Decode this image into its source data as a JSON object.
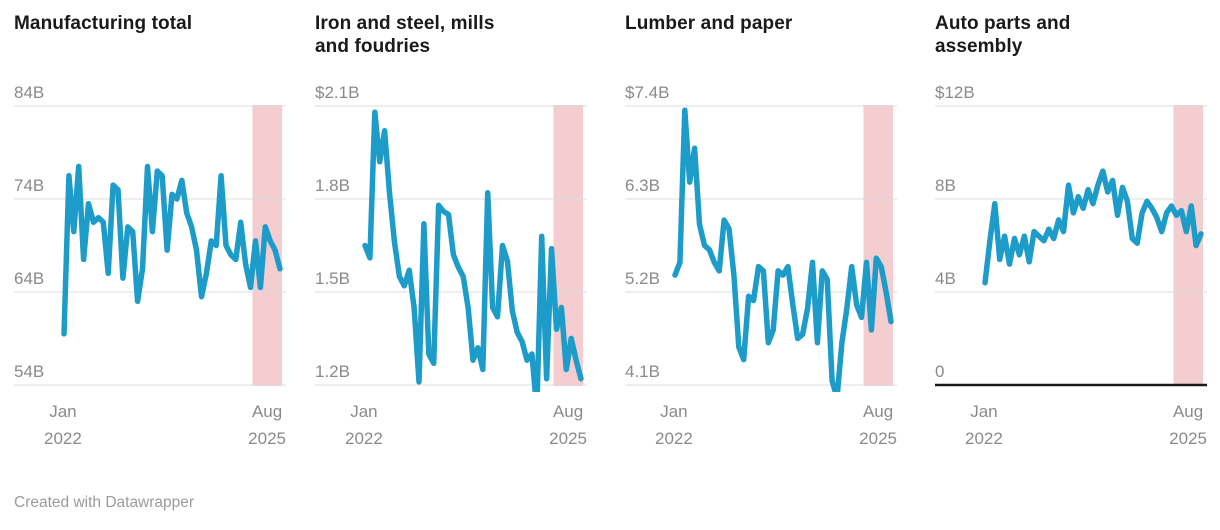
{
  "footer": {
    "credit": "Created with Datawrapper"
  },
  "colors": {
    "line": "#1d9bc9",
    "band": "#f4cdd0",
    "grid": "#dcdcdc",
    "axis": "#1a1a1a",
    "tick_label": "#8a8a8a",
    "title": "#1a1a1a",
    "footer": "#9b9b9b"
  },
  "chart_data": [
    {
      "type": "line",
      "title": "Manufacturing total",
      "x_left": {
        "month": "Jan",
        "year": "2022"
      },
      "x_right": {
        "month": "Aug",
        "year": "2025"
      },
      "x_range": [
        "2022-01",
        "2025-09"
      ],
      "ylim": [
        54,
        84
      ],
      "grid": true,
      "zero_baseline": false,
      "highlight_start_index": 39,
      "y_ticks": [
        {
          "label": "84B",
          "value": 84
        },
        {
          "label": "74B",
          "value": 74
        },
        {
          "label": "64B",
          "value": 64
        },
        {
          "label": "54B",
          "value": 54
        }
      ],
      "values": [
        59.5,
        76.5,
        70.5,
        77.5,
        67.5,
        73.5,
        71.5,
        72,
        71.5,
        66,
        75.5,
        75,
        65.5,
        71,
        70.5,
        63,
        66.5,
        77.5,
        70.5,
        77,
        76.5,
        68.5,
        74.5,
        74,
        76,
        72.5,
        71,
        68.5,
        63.5,
        66,
        69.5,
        69,
        76.5,
        69,
        68,
        67.5,
        71.5,
        67,
        64.5,
        69.5,
        64.5,
        71,
        69.5,
        68.5,
        66.5
      ]
    },
    {
      "type": "line",
      "title": "Iron and steel, mills and foudries",
      "x_left": {
        "month": "Jan",
        "year": "2022"
      },
      "x_right": {
        "month": "Aug",
        "year": "2025"
      },
      "x_range": [
        "2022-01",
        "2025-09"
      ],
      "ylim": [
        1.2,
        2.1
      ],
      "grid": true,
      "zero_baseline": false,
      "highlight_start_index": 39,
      "y_ticks": [
        {
          "label": "$2.1B",
          "value": 2.1
        },
        {
          "label": "1.8B",
          "value": 1.8
        },
        {
          "label": "1.5B",
          "value": 1.5
        },
        {
          "label": "1.2B",
          "value": 1.2
        }
      ],
      "values": [
        1.65,
        1.61,
        2.08,
        1.92,
        2.02,
        1.82,
        1.66,
        1.55,
        1.52,
        1.57,
        1.45,
        1.21,
        1.72,
        1.3,
        1.27,
        1.78,
        1.76,
        1.75,
        1.62,
        1.58,
        1.55,
        1.45,
        1.28,
        1.32,
        1.25,
        1.82,
        1.45,
        1.42,
        1.65,
        1.6,
        1.44,
        1.37,
        1.34,
        1.28,
        1.3,
        1.12,
        1.68,
        1.22,
        1.64,
        1.38,
        1.45,
        1.25,
        1.35,
        1.28,
        1.22
      ]
    },
    {
      "type": "line",
      "title": "Lumber and paper",
      "x_left": {
        "month": "Jan",
        "year": "2022"
      },
      "x_right": {
        "month": "Aug",
        "year": "2025"
      },
      "x_range": [
        "2022-01",
        "2025-09"
      ],
      "ylim": [
        4.1,
        7.4
      ],
      "grid": true,
      "zero_baseline": false,
      "highlight_start_index": 39,
      "y_ticks": [
        {
          "label": "$7.4B",
          "value": 7.4
        },
        {
          "label": "6.3B",
          "value": 6.3
        },
        {
          "label": "5.2B",
          "value": 5.2
        },
        {
          "label": "4.1B",
          "value": 4.1
        }
      ],
      "values": [
        5.4,
        5.55,
        7.35,
        6.5,
        6.9,
        6.0,
        5.75,
        5.7,
        5.55,
        5.45,
        6.05,
        5.95,
        5.4,
        4.55,
        4.4,
        5.15,
        5.1,
        5.5,
        5.45,
        4.6,
        4.75,
        5.45,
        5.4,
        5.5,
        5.05,
        4.65,
        4.7,
        5.0,
        5.55,
        4.6,
        5.45,
        5.35,
        4.15,
        3.95,
        4.6,
        5.0,
        5.5,
        5.05,
        4.9,
        5.55,
        4.75,
        5.6,
        5.5,
        5.2,
        4.85
      ]
    },
    {
      "type": "line",
      "title": "Auto parts and assembly",
      "x_left": {
        "month": "Jan",
        "year": "2022"
      },
      "x_right": {
        "month": "Aug",
        "year": "2025"
      },
      "x_range": [
        "2022-01",
        "2025-09"
      ],
      "ylim": [
        0,
        12
      ],
      "grid": true,
      "zero_baseline": true,
      "highlight_start_index": 39,
      "y_ticks": [
        {
          "label": "$12B",
          "value": 12
        },
        {
          "label": "8B",
          "value": 8
        },
        {
          "label": "4B",
          "value": 4
        },
        {
          "label": "0",
          "value": 0
        }
      ],
      "values": [
        4.4,
        6.2,
        7.8,
        5.4,
        6.4,
        5.2,
        6.3,
        5.6,
        6.4,
        5.3,
        6.6,
        6.4,
        6.2,
        6.7,
        6.3,
        7.1,
        6.6,
        8.6,
        7.4,
        8.1,
        7.6,
        8.4,
        7.8,
        8.6,
        9.2,
        8.3,
        8.8,
        7.3,
        8.5,
        7.9,
        6.3,
        6.1,
        7.4,
        7.9,
        7.6,
        7.2,
        6.6,
        7.4,
        7.7,
        7.3,
        7.5,
        6.6,
        7.7,
        6.0,
        6.5
      ]
    }
  ]
}
